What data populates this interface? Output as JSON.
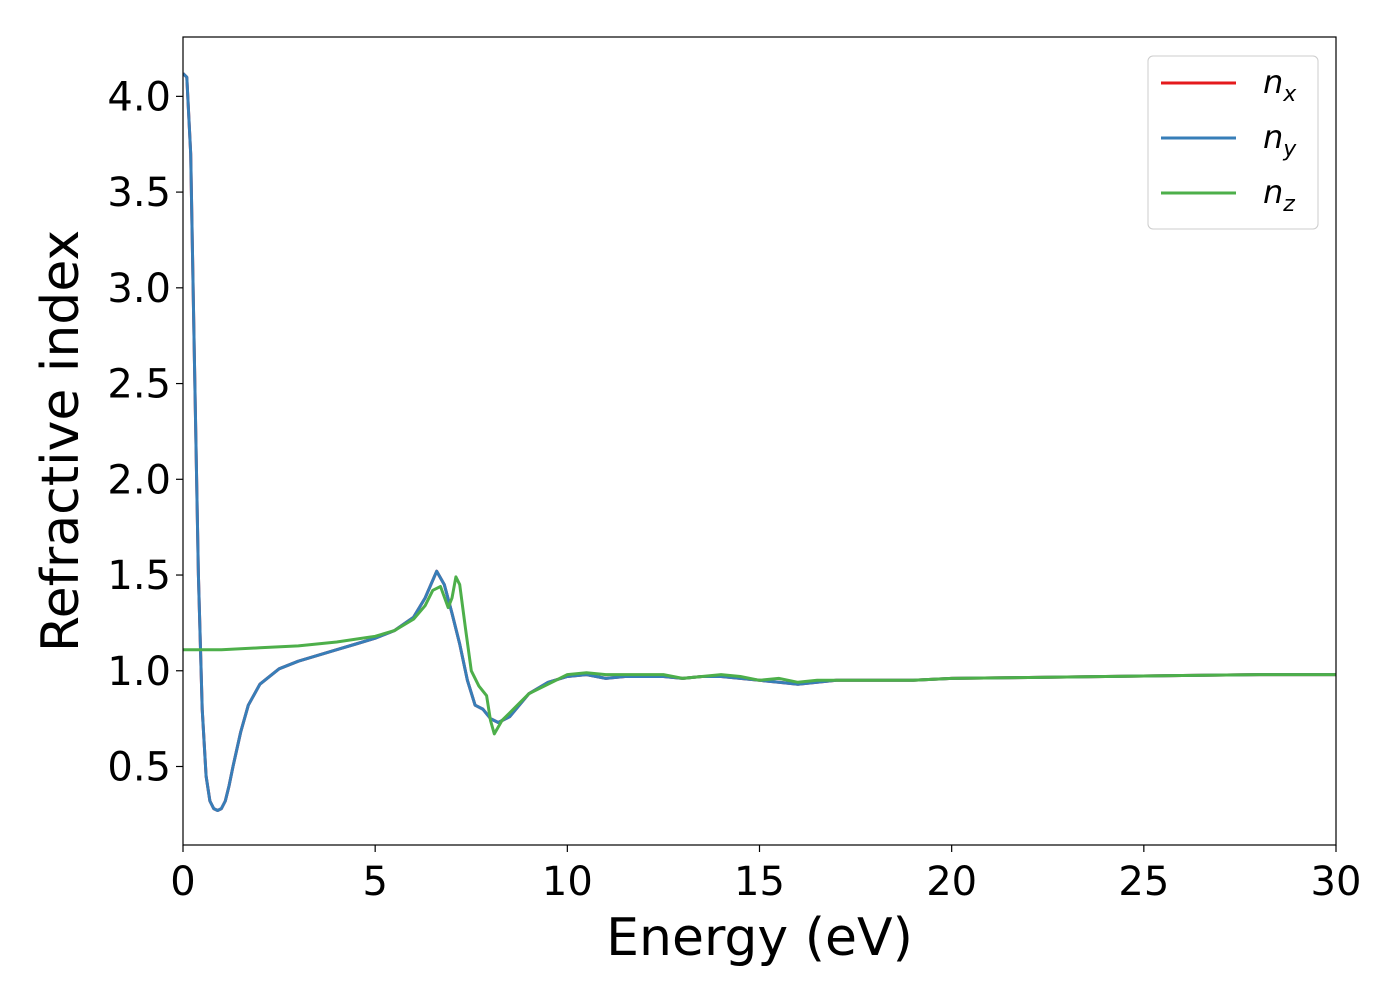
{
  "chart_data": {
    "type": "line",
    "xlabel": "Energy (eV)",
    "ylabel": "Refractive index",
    "xlim": [
      0,
      30
    ],
    "ylim": [
      0.09,
      4.31
    ],
    "x_ticks": [
      0,
      5,
      10,
      15,
      20,
      25,
      30
    ],
    "x_tick_labels": [
      "0",
      "5",
      "10",
      "15",
      "20",
      "25",
      "30"
    ],
    "y_ticks": [
      0.5,
      1.0,
      1.5,
      2.0,
      2.5,
      3.0,
      3.5,
      4.0
    ],
    "y_tick_labels": [
      "0.5",
      "1.0",
      "1.5",
      "2.0",
      "2.5",
      "3.0",
      "3.5",
      "4.0"
    ],
    "grid": false,
    "legend_position": "top-right",
    "series": [
      {
        "name": "n_x",
        "legend_base": "n",
        "legend_sub": "x",
        "color": "#e41a1c",
        "x": [
          0,
          0.1,
          0.2,
          0.3,
          0.4,
          0.5,
          0.6,
          0.7,
          0.8,
          0.9,
          1.0,
          1.1,
          1.2,
          1.3,
          1.5,
          1.7,
          2.0,
          2.5,
          3.0,
          3.5,
          4.0,
          4.5,
          5.0,
          5.5,
          6.0,
          6.3,
          6.6,
          6.8,
          7.0,
          7.2,
          7.4,
          7.6,
          7.8,
          8.0,
          8.2,
          8.5,
          9.0,
          9.5,
          10.0,
          10.5,
          11.0,
          11.5,
          12.0,
          12.5,
          13.0,
          13.5,
          14.0,
          14.5,
          15.0,
          15.5,
          16.0,
          16.5,
          17.0,
          18.0,
          19.0,
          20.0,
          22.0,
          24.0,
          26.0,
          28.0,
          30.0
        ],
        "values": [
          4.12,
          4.1,
          3.7,
          2.6,
          1.5,
          0.8,
          0.45,
          0.32,
          0.28,
          0.27,
          0.28,
          0.32,
          0.4,
          0.5,
          0.68,
          0.82,
          0.93,
          1.01,
          1.05,
          1.08,
          1.11,
          1.14,
          1.17,
          1.21,
          1.28,
          1.38,
          1.52,
          1.45,
          1.3,
          1.14,
          0.95,
          0.82,
          0.8,
          0.75,
          0.73,
          0.76,
          0.88,
          0.94,
          0.97,
          0.98,
          0.96,
          0.97,
          0.97,
          0.97,
          0.96,
          0.97,
          0.97,
          0.96,
          0.95,
          0.94,
          0.93,
          0.94,
          0.95,
          0.95,
          0.95,
          0.96,
          0.965,
          0.97,
          0.975,
          0.98,
          0.98
        ]
      },
      {
        "name": "n_y",
        "legend_base": "n",
        "legend_sub": "y",
        "color": "#377eb8",
        "x": [
          0,
          0.1,
          0.2,
          0.3,
          0.4,
          0.5,
          0.6,
          0.7,
          0.8,
          0.9,
          1.0,
          1.1,
          1.2,
          1.3,
          1.5,
          1.7,
          2.0,
          2.5,
          3.0,
          3.5,
          4.0,
          4.5,
          5.0,
          5.5,
          6.0,
          6.3,
          6.6,
          6.8,
          7.0,
          7.2,
          7.4,
          7.6,
          7.8,
          8.0,
          8.2,
          8.5,
          9.0,
          9.5,
          10.0,
          10.5,
          11.0,
          11.5,
          12.0,
          12.5,
          13.0,
          13.5,
          14.0,
          14.5,
          15.0,
          15.5,
          16.0,
          16.5,
          17.0,
          18.0,
          19.0,
          20.0,
          22.0,
          24.0,
          26.0,
          28.0,
          30.0
        ],
        "values": [
          4.12,
          4.1,
          3.7,
          2.6,
          1.5,
          0.8,
          0.45,
          0.32,
          0.28,
          0.27,
          0.28,
          0.32,
          0.4,
          0.5,
          0.68,
          0.82,
          0.93,
          1.01,
          1.05,
          1.08,
          1.11,
          1.14,
          1.17,
          1.21,
          1.28,
          1.38,
          1.52,
          1.45,
          1.3,
          1.14,
          0.95,
          0.82,
          0.8,
          0.75,
          0.73,
          0.76,
          0.88,
          0.94,
          0.97,
          0.98,
          0.96,
          0.97,
          0.97,
          0.97,
          0.96,
          0.97,
          0.97,
          0.96,
          0.95,
          0.94,
          0.93,
          0.94,
          0.95,
          0.95,
          0.95,
          0.96,
          0.965,
          0.97,
          0.975,
          0.98,
          0.98
        ]
      },
      {
        "name": "n_z",
        "legend_base": "n",
        "legend_sub": "z",
        "color": "#4daf4a",
        "x": [
          0,
          1.0,
          2.0,
          3.0,
          4.0,
          5.0,
          5.5,
          6.0,
          6.3,
          6.5,
          6.7,
          6.9,
          7.0,
          7.1,
          7.2,
          7.35,
          7.5,
          7.7,
          7.9,
          8.0,
          8.1,
          8.3,
          8.6,
          9.0,
          9.5,
          10.0,
          10.5,
          11.0,
          11.5,
          12.0,
          12.5,
          13.0,
          13.5,
          14.0,
          14.5,
          15.0,
          15.5,
          16.0,
          16.5,
          17.0,
          18.0,
          19.0,
          20.0,
          22.0,
          24.0,
          26.0,
          28.0,
          30.0
        ],
        "values": [
          1.11,
          1.11,
          1.12,
          1.13,
          1.15,
          1.18,
          1.21,
          1.27,
          1.34,
          1.42,
          1.44,
          1.33,
          1.38,
          1.49,
          1.45,
          1.22,
          1.0,
          0.92,
          0.87,
          0.74,
          0.67,
          0.74,
          0.8,
          0.88,
          0.93,
          0.98,
          0.99,
          0.98,
          0.98,
          0.98,
          0.98,
          0.96,
          0.97,
          0.98,
          0.97,
          0.95,
          0.96,
          0.94,
          0.95,
          0.95,
          0.95,
          0.95,
          0.96,
          0.965,
          0.97,
          0.975,
          0.98,
          0.98
        ]
      }
    ]
  }
}
